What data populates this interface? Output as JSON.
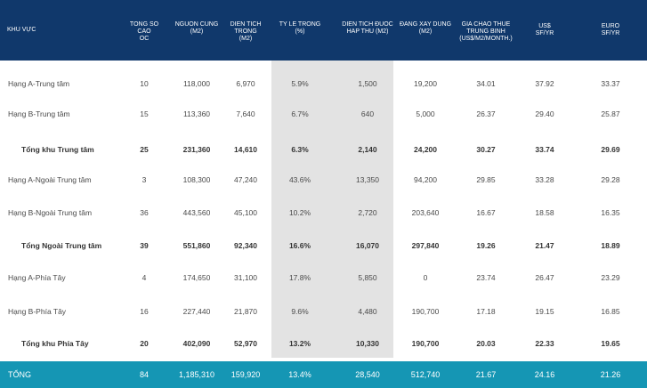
{
  "header": [
    "KHU VỰC",
    "TONG SO CAO\nOC",
    "NGUON CUNG\n(M2)",
    "DIEN TICH\nTRONG\n(M2)",
    "TY LE TRONG\n(%)",
    "DIEN TICH ĐUOC\nHAP THU (M2)",
    "ĐANG XAY DUNG\n(M2)",
    "GIA CHAO THUE\nTRUNG BINH\n(US$/M2/MONTH.)",
    "US$\nSF/YR",
    "EURO\nSF/YR"
  ],
  "rows": [
    {
      "name": "Hạng A-Trung tâm",
      "total": false,
      "values": [
        "10",
        "118,000",
        "6,970",
        "5.9%",
        "1,500",
        "19,200",
        "34.01",
        "37.92",
        "33.37"
      ]
    },
    {
      "name": "Hạng B-Trung tâm",
      "total": false,
      "values": [
        "15",
        "113,360",
        "7,640",
        "6.7%",
        "640",
        "5,000",
        "26.37",
        "29.40",
        "25.87"
      ]
    },
    {
      "name": "Tổng khu Trung tâm",
      "total": true,
      "values": [
        "25",
        "231,360",
        "14,610",
        "6.3%",
        "2,140",
        "24,200",
        "30.27",
        "33.74",
        "29.69"
      ]
    },
    {
      "name": "Hạng A-Ngoài Trung tâm",
      "total": false,
      "values": [
        "3",
        "108,300",
        "47,240",
        "43.6%",
        "13,350",
        "94,200",
        "29.85",
        "33.28",
        "29.28"
      ]
    },
    {
      "name": "Hạng B-Ngoài Trung tâm",
      "total": false,
      "values": [
        "36",
        "443,560",
        "45,100",
        "10.2%",
        "2,720",
        "203,640",
        "16.67",
        "18.58",
        "16.35"
      ]
    },
    {
      "name": "Tổng Ngoài Trung tâm",
      "total": true,
      "values": [
        "39",
        "551,860",
        "92,340",
        "16.6%",
        "16,070",
        "297,840",
        "19.26",
        "21.47",
        "18.89"
      ]
    },
    {
      "name": "Hạng A-Phía Tây",
      "total": false,
      "values": [
        "4",
        "174,650",
        "31,100",
        "17.8%",
        "5,850",
        "0",
        "23.74",
        "26.47",
        "23.29"
      ]
    },
    {
      "name": "Hạng B-Phía Tây",
      "total": false,
      "values": [
        "16",
        "227,440",
        "21,870",
        "9.6%",
        "4,480",
        "190,700",
        "17.18",
        "19.15",
        "16.85"
      ]
    },
    {
      "name": "Tổng khu Phía Tây",
      "total": true,
      "values": [
        "20",
        "402,090",
        "52,970",
        "13.2%",
        "10,330",
        "190,700",
        "20.03",
        "22.33",
        "19.65"
      ]
    }
  ],
  "footer": {
    "name": "TỔNG",
    "values": [
      "84",
      "1,185,310",
      "159,920",
      "13.4%",
      "28,540",
      "512,740",
      "21.67",
      "24.16",
      "21.26"
    ]
  }
}
